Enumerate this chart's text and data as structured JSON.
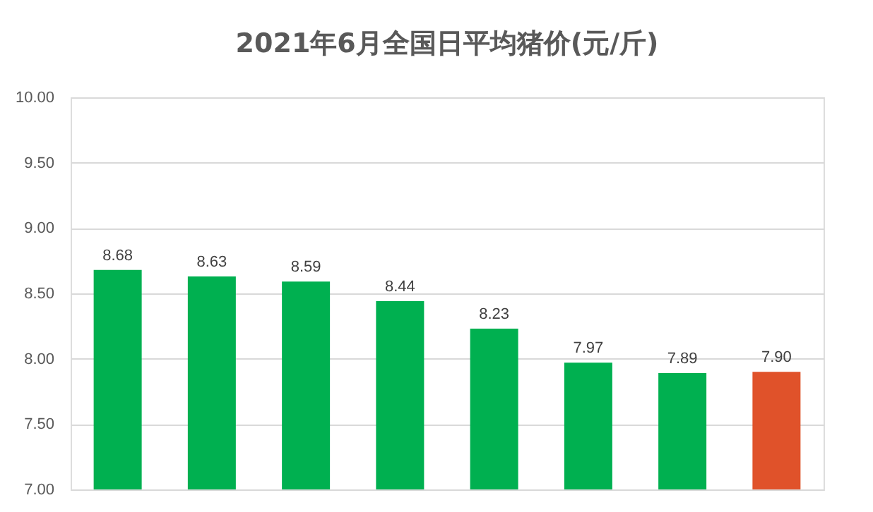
{
  "chart_data": {
    "type": "bar",
    "title": "2021年6月全国日平均猪价(元/斤)",
    "categories": [
      null,
      null,
      null,
      null,
      null,
      null,
      null,
      null
    ],
    "values": [
      8.68,
      8.63,
      8.59,
      8.44,
      8.23,
      7.97,
      7.89,
      7.9
    ],
    "colors": [
      "#00b050",
      "#00b050",
      "#00b050",
      "#00b050",
      "#00b050",
      "#00b050",
      "#00b050",
      "#e0522a"
    ],
    "ylim": [
      7.0,
      10.0
    ],
    "yticks": [
      {
        "value": 7.0,
        "label": "7.00"
      },
      {
        "value": 7.5,
        "label": "7.50"
      },
      {
        "value": 8.0,
        "label": "8.00"
      },
      {
        "value": 8.5,
        "label": "8.50"
      },
      {
        "value": 9.0,
        "label": "9.00"
      },
      {
        "value": 9.5,
        "label": "9.50"
      },
      {
        "value": 10.0,
        "label": "10.00"
      }
    ],
    "value_labels": [
      "8.68",
      "8.63",
      "8.59",
      "8.44",
      "8.23",
      "7.97",
      "7.89",
      "7.90"
    ],
    "grid": "y",
    "tick_labels": "y"
  }
}
